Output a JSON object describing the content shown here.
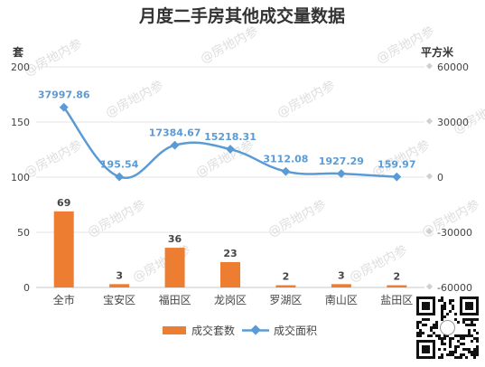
{
  "chart_data": {
    "type": "bar",
    "title": "月度二手房其他成交量数据",
    "left_unit": "套",
    "right_unit": "平方米",
    "categories": [
      "全市",
      "宝安区",
      "福田区",
      "龙岗区",
      "罗湖区",
      "南山区",
      "盐田区"
    ],
    "series": [
      {
        "name": "成交套数",
        "type": "bar",
        "axis": "left",
        "color": "#ed7d31",
        "values": [
          69,
          3,
          36,
          23,
          2,
          3,
          2
        ],
        "labels": [
          "69",
          "3",
          "36",
          "23",
          "2",
          "3",
          "2"
        ]
      },
      {
        "name": "成交面积",
        "type": "line",
        "axis": "right",
        "color": "#5b9bd5",
        "values": [
          37997.86,
          195.54,
          17384.67,
          15218.31,
          3112.08,
          1927.29,
          159.97
        ],
        "labels": [
          "37997.86",
          "195.54",
          "17384.67",
          "15218.31",
          "3112.08",
          "1927.29",
          "159.97"
        ]
      }
    ],
    "ylim_left": [
      0,
      200
    ],
    "yticks_left": [
      0,
      50,
      100,
      150,
      200
    ],
    "ylim_right": [
      -60000,
      60000
    ],
    "yticks_right": [
      -60000,
      -30000,
      0,
      30000,
      60000
    ],
    "grid": true,
    "legend": "bottom",
    "watermark": "@房地内参"
  }
}
